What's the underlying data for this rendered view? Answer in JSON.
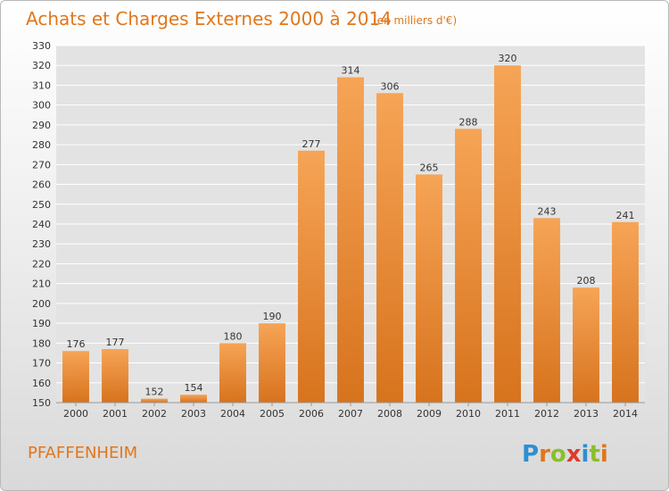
{
  "header": {
    "title": "Achats et Charges Externes 2000 à 2014",
    "unit": "(en milliers d'€)"
  },
  "footer": {
    "city": "PFAFFENHEIM",
    "logo_text": "Proxiti"
  },
  "colors": {
    "accent": "#e0771c",
    "bar_top": "#f6a456",
    "bar_bottom": "#d7731d",
    "grid": "#ffffff",
    "plot_bg": "#e3e3e3"
  },
  "chart_data": {
    "type": "bar",
    "title": "Achats et Charges Externes 2000 à 2014",
    "subtitle": "(en milliers d'€)",
    "categories": [
      "2000",
      "2001",
      "2002",
      "2003",
      "2004",
      "2005",
      "2006",
      "2007",
      "2008",
      "2009",
      "2010",
      "2011",
      "2012",
      "2013",
      "2014"
    ],
    "values": [
      176,
      177,
      152,
      154,
      180,
      190,
      277,
      314,
      306,
      265,
      288,
      320,
      243,
      208,
      241
    ],
    "ylim": [
      150,
      330
    ],
    "ytick_step": 10,
    "grid": true,
    "legend": "none"
  }
}
